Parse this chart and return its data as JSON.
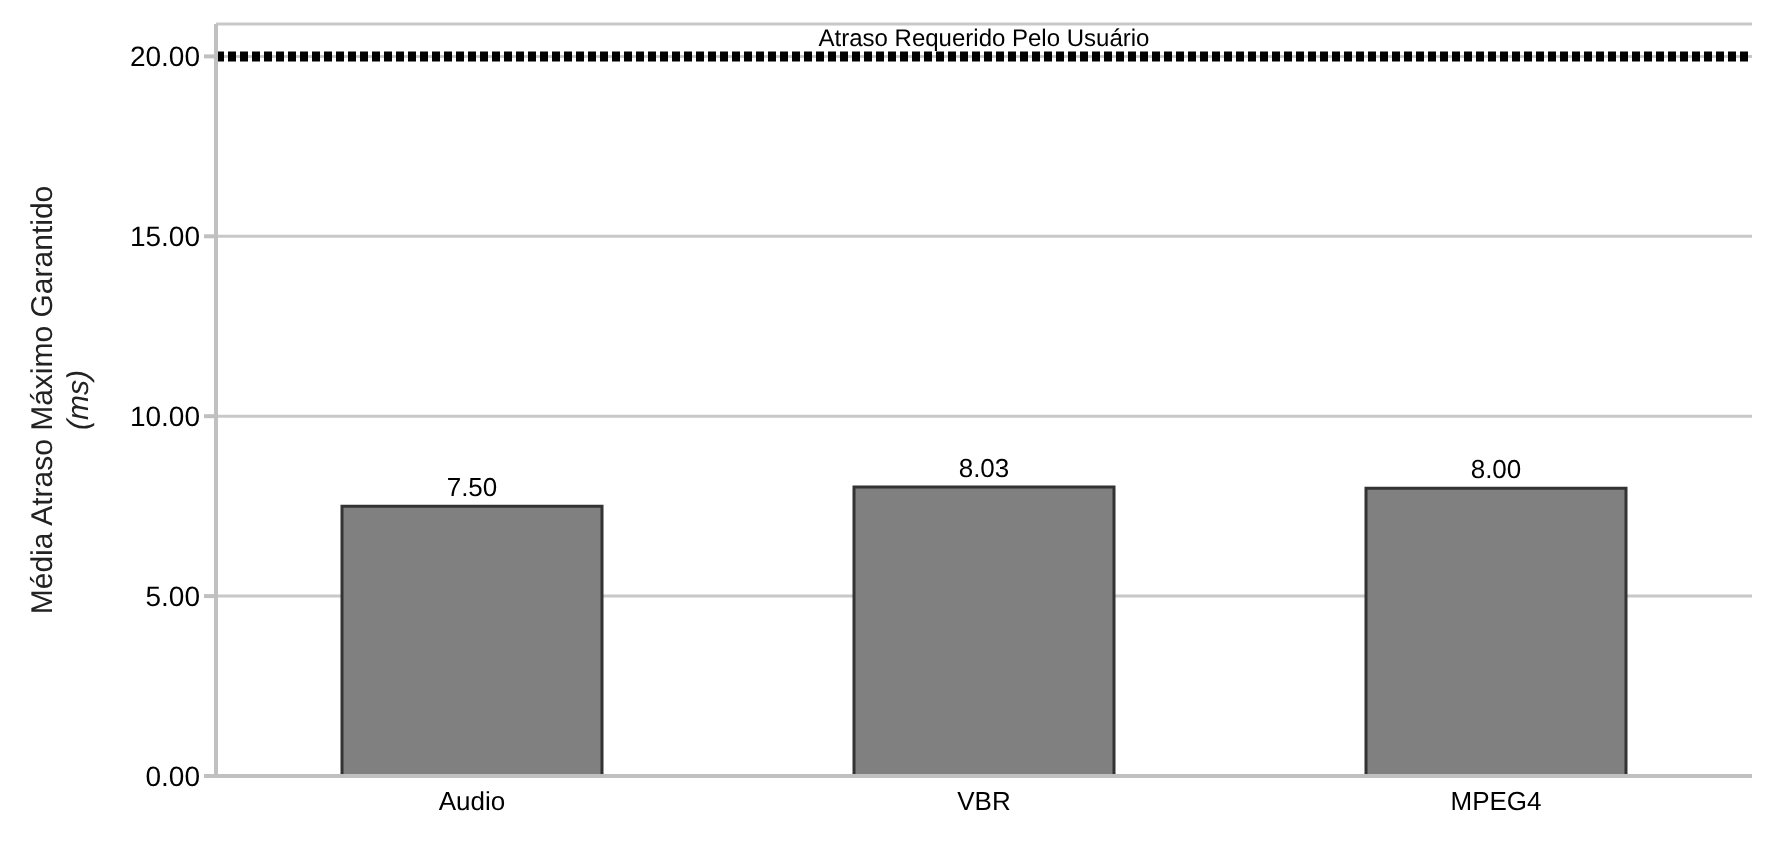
{
  "chart_data": {
    "type": "bar",
    "ylabel": "Média Atraso Máximo Garantido (ms)",
    "categories": [
      "Audio",
      "VBR",
      "MPEG4"
    ],
    "values": [
      7.5,
      8.03,
      8.0
    ],
    "color": "#808080",
    "ylim": [
      0,
      20.9
    ],
    "yticks": [
      {
        "value": 0,
        "label": "0.00"
      },
      {
        "value": 5,
        "label": "5.00"
      },
      {
        "value": 10,
        "label": "10.00"
      },
      {
        "value": 15,
        "label": "15.00"
      },
      {
        "value": 20,
        "label": "20.00"
      }
    ],
    "grid": "y",
    "value_labels": [
      "7.50",
      "8.03",
      "8.00"
    ],
    "ref_lines": [
      {
        "axis": "y",
        "value": 20,
        "label": "Atraso Requerido Pelo Usuário",
        "color": "#000000",
        "line_style": "dashed"
      }
    ]
  }
}
